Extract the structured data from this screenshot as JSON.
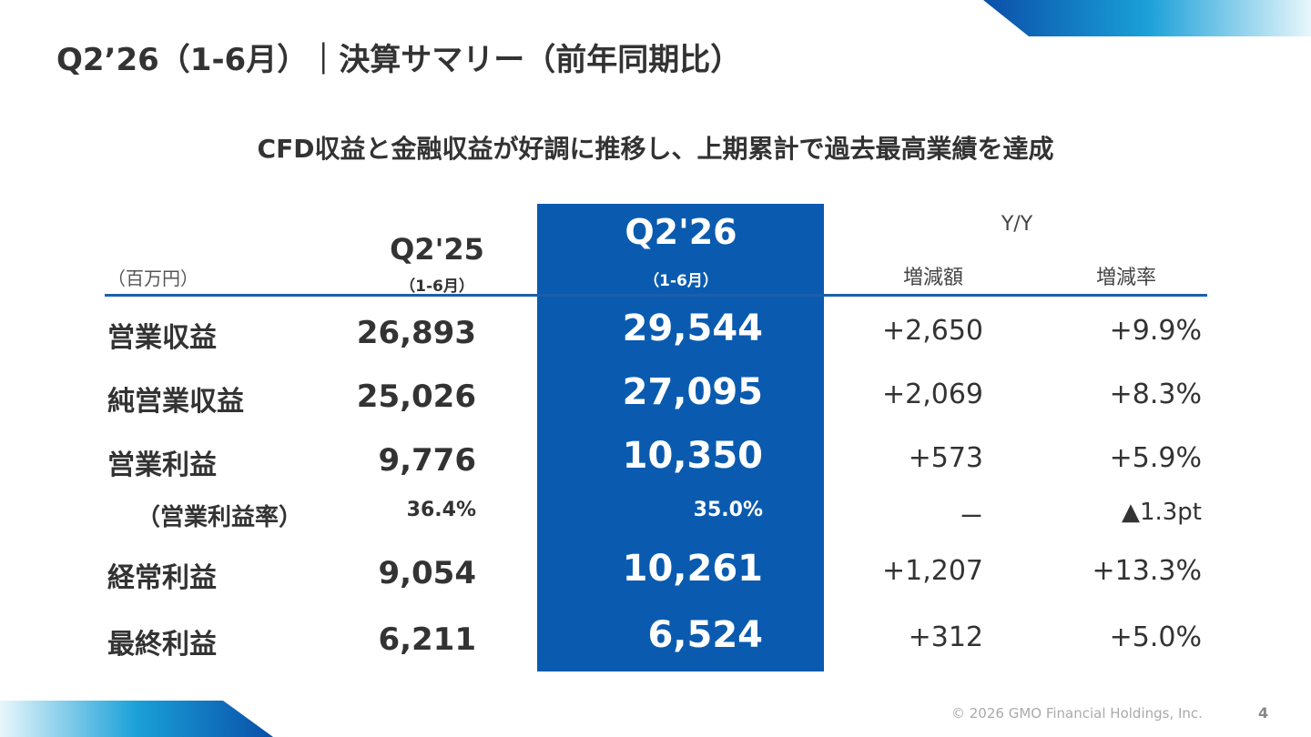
{
  "header": {
    "title": "Q2’26（1-6月）｜決算サマリー（前年同期比）",
    "subtitle": "CFD収益と金融収益が好調に推移し、上期累計で過去最高業績を達成"
  },
  "table": {
    "unit": "（百万円）",
    "columns": [
      {
        "label": "Q2'25",
        "sub": "（1-6月）"
      },
      {
        "label": "Q2'26",
        "sub": "（1-6月）"
      }
    ],
    "yy": "Y/Y",
    "yy_columns": [
      "増減額",
      "増減率"
    ],
    "rows": [
      [
        "営業収益",
        "26,893",
        "29,544",
        "+2,650",
        "+9.9%"
      ],
      [
        "純営業収益",
        "25,026",
        "27,095",
        "+2,069",
        "+8.3%"
      ],
      [
        "営業利益",
        "9,776",
        "10,350",
        "+573",
        "+5.9%"
      ],
      [
        "（営業利益率）",
        "36.4%",
        "35.0%",
        "ー",
        "▲1.3pt"
      ],
      [
        "経常利益",
        "9,054",
        "10,261",
        "+1,207",
        "+13.3%"
      ],
      [
        "最終利益",
        "6,211",
        "6,524",
        "+312",
        "+5.0%"
      ]
    ]
  },
  "footer": {
    "copyright": "© 2026 GMO Financial Holdings, Inc.",
    "page": "4"
  }
}
